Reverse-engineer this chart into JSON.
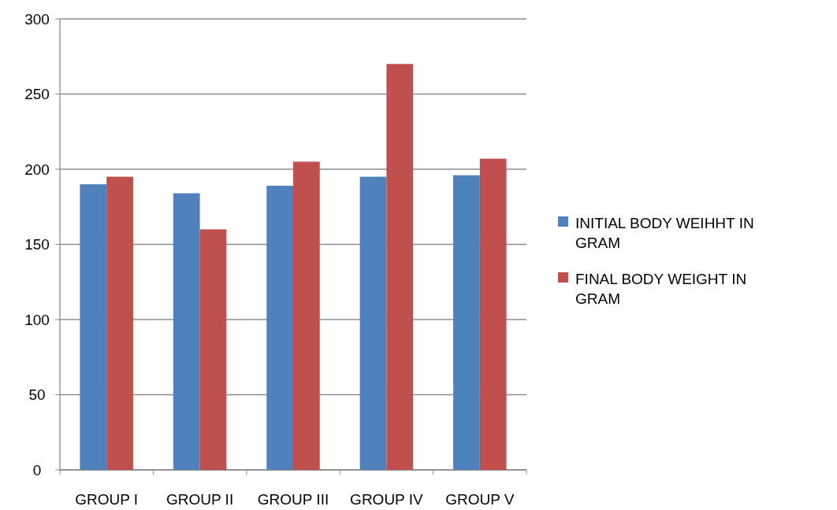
{
  "chart_data": {
    "type": "bar",
    "categories": [
      "GROUP I",
      "GROUP II",
      "GROUP III",
      "GROUP IV",
      "GROUP V"
    ],
    "series": [
      {
        "name": "INITIAL BODY WEIHHT IN GRAM",
        "color": "#4f81bd",
        "values": [
          190,
          184,
          189,
          195,
          196
        ]
      },
      {
        "name": "FINAL BODY WEIGHT IN GRAM",
        "color": "#c0504d",
        "values": [
          195,
          160,
          205,
          270,
          207
        ]
      }
    ],
    "ylim": [
      0,
      300
    ],
    "yticks": [
      0,
      50,
      100,
      150,
      200,
      250,
      300
    ],
    "grid": "y",
    "legend": "right"
  }
}
